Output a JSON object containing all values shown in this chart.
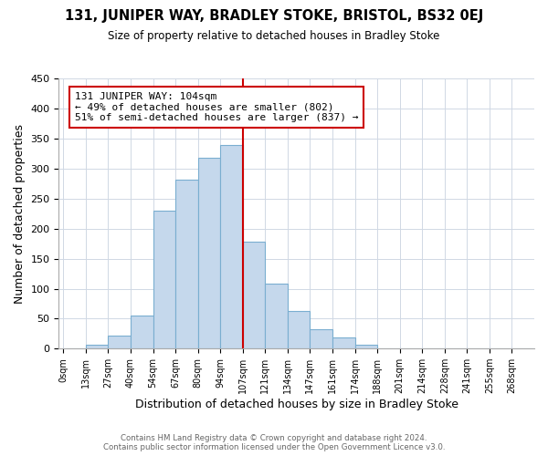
{
  "title_line1": "131, JUNIPER WAY, BRADLEY STOKE, BRISTOL, BS32 0EJ",
  "title_line2": "Size of property relative to detached houses in Bradley Stoke",
  "xlabel": "Distribution of detached houses by size in Bradley Stoke",
  "ylabel": "Number of detached properties",
  "bar_labels": [
    "0sqm",
    "13sqm",
    "27sqm",
    "40sqm",
    "54sqm",
    "67sqm",
    "80sqm",
    "94sqm",
    "107sqm",
    "121sqm",
    "134sqm",
    "147sqm",
    "161sqm",
    "174sqm",
    "188sqm",
    "201sqm",
    "214sqm",
    "228sqm",
    "241sqm",
    "255sqm",
    "268sqm"
  ],
  "bar_heights": [
    0,
    7,
    22,
    55,
    230,
    282,
    318,
    340,
    178,
    108,
    63,
    33,
    18,
    7,
    0,
    0,
    0,
    0,
    0,
    0,
    0
  ],
  "bar_color": "#c5d8ec",
  "bar_edge_color": "#7aaed0",
  "vline_x": 8,
  "vline_color": "#cc0000",
  "annotation_text": "131 JUNIPER WAY: 104sqm\n← 49% of detached houses are smaller (802)\n51% of semi-detached houses are larger (837) →",
  "annotation_box_color": "#ffffff",
  "annotation_box_edge_color": "#cc0000",
  "ylim": [
    0,
    450
  ],
  "yticks": [
    0,
    50,
    100,
    150,
    200,
    250,
    300,
    350,
    400,
    450
  ],
  "footer_line1": "Contains HM Land Registry data © Crown copyright and database right 2024.",
  "footer_line2": "Contains public sector information licensed under the Open Government Licence v3.0.",
  "bg_color": "#ffffff",
  "grid_color": "#d0d8e4"
}
